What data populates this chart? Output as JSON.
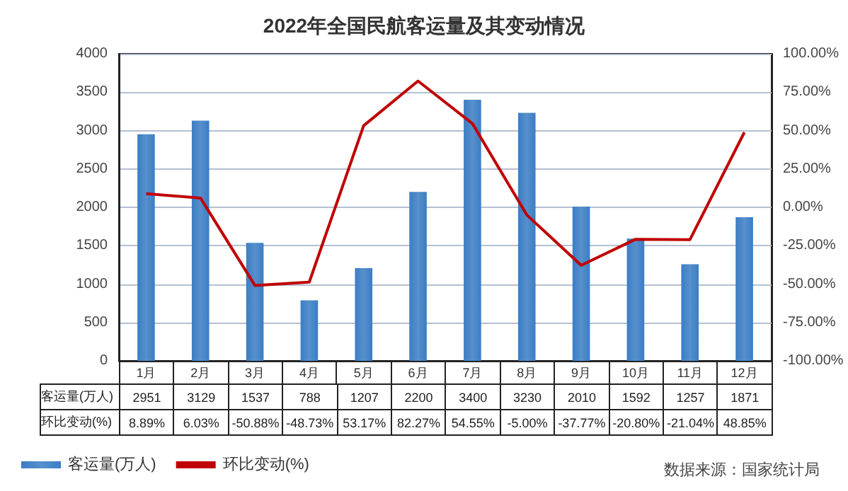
{
  "chart_data": {
    "type": "bar",
    "title": "2022年全国民航客运量及其变动情况",
    "categories": [
      "1月",
      "2月",
      "3月",
      "4月",
      "5月",
      "6月",
      "7月",
      "8月",
      "9月",
      "10月",
      "11月",
      "12月"
    ],
    "series": [
      {
        "name": "客运量(万人)",
        "color": "#3a7dc4",
        "values": [
          2951,
          3129,
          1537,
          788,
          1207,
          2200,
          3400,
          3230,
          2010,
          1592,
          1257,
          1871
        ],
        "value_labels": [
          "2951",
          "3129",
          "1537",
          "788",
          "1207",
          "2200",
          "3400",
          "3230",
          "2010",
          "1592",
          "1257",
          "1871"
        ]
      },
      {
        "name": "环比变动(%)",
        "type": "line",
        "axis": "y2",
        "color": "#c00000",
        "values": [
          8.89,
          6.03,
          -50.88,
          -48.73,
          53.17,
          82.27,
          54.55,
          -5.0,
          -37.77,
          -20.8,
          -21.04,
          48.85
        ],
        "value_labels": [
          "8.89%",
          "6.03%",
          "-50.88%",
          "-48.73%",
          "53.17%",
          "82.27%",
          "54.55%",
          "-5.00%",
          "-37.77%",
          "-20.80%",
          "-21.04%",
          "48.85%"
        ]
      }
    ],
    "ylim": [
      0,
      4000
    ],
    "yticks": [
      0,
      500,
      1000,
      1500,
      2000,
      2500,
      3000,
      3500,
      4000
    ],
    "y2lim": [
      -100,
      100
    ],
    "y2ticks": [
      {
        "value": -100,
        "label": "-100.00%"
      },
      {
        "value": -75,
        "label": "-75.00%"
      },
      {
        "value": -50,
        "label": "-50.00%"
      },
      {
        "value": -25,
        "label": "-25.00%"
      },
      {
        "value": 0,
        "label": "0.00%"
      },
      {
        "value": 25,
        "label": "25.00%"
      },
      {
        "value": 50,
        "label": "50.00%"
      },
      {
        "value": 75,
        "label": "75.00%"
      },
      {
        "value": 100,
        "label": "100.00%"
      }
    ],
    "grid": "y",
    "legend": "bottom left",
    "marker": "none",
    "line_style": "solid",
    "annotations": [
      "数据来源：国家统计局"
    ]
  }
}
